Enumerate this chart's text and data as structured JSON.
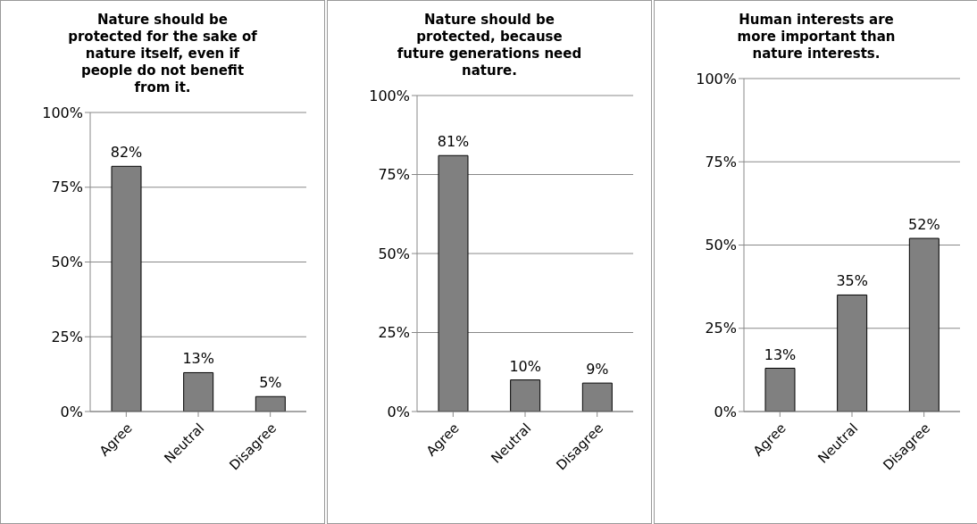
{
  "chart_data": [
    {
      "type": "bar",
      "title": "Nature should be protected for the sake of nature itself, even if people do not benefit from it.",
      "categories": [
        "Agree",
        "Neutral",
        "Disagree"
      ],
      "values": [
        82,
        13,
        5
      ],
      "value_labels": [
        "82%",
        "13%",
        "5%"
      ],
      "color": "#808080",
      "ylim": [
        0,
        100
      ],
      "yticks": [
        {
          "value": 0,
          "label": "0%"
        },
        {
          "value": 25,
          "label": "25%"
        },
        {
          "value": 50,
          "label": "50%"
        },
        {
          "value": 75,
          "label": "75%"
        },
        {
          "value": 100,
          "label": "100%"
        }
      ],
      "grid": "y"
    },
    {
      "type": "bar",
      "title": "Nature should be protected, because future generations need nature.",
      "categories": [
        "Agree",
        "Neutral",
        "Disagree"
      ],
      "values": [
        81,
        10,
        9
      ],
      "value_labels": [
        "81%",
        "10%",
        "9%"
      ],
      "color": "#808080",
      "ylim": [
        0,
        100
      ],
      "yticks": [
        {
          "value": 0,
          "label": "0%"
        },
        {
          "value": 25,
          "label": "25%"
        },
        {
          "value": 50,
          "label": "50%"
        },
        {
          "value": 75,
          "label": "75%"
        },
        {
          "value": 100,
          "label": "100%"
        }
      ],
      "grid": "y"
    },
    {
      "type": "bar",
      "title": "Human interests are more important than nature interests.",
      "categories": [
        "Agree",
        "Neutral",
        "Disagree"
      ],
      "values": [
        13,
        35,
        52
      ],
      "value_labels": [
        "13%",
        "35%",
        "52%"
      ],
      "color": "#808080",
      "ylim": [
        0,
        100
      ],
      "yticks": [
        {
          "value": 0,
          "label": "0%"
        },
        {
          "value": 25,
          "label": "25%"
        },
        {
          "value": 50,
          "label": "50%"
        },
        {
          "value": 75,
          "label": "75%"
        },
        {
          "value": 100,
          "label": "100%"
        }
      ],
      "grid": "y"
    }
  ]
}
